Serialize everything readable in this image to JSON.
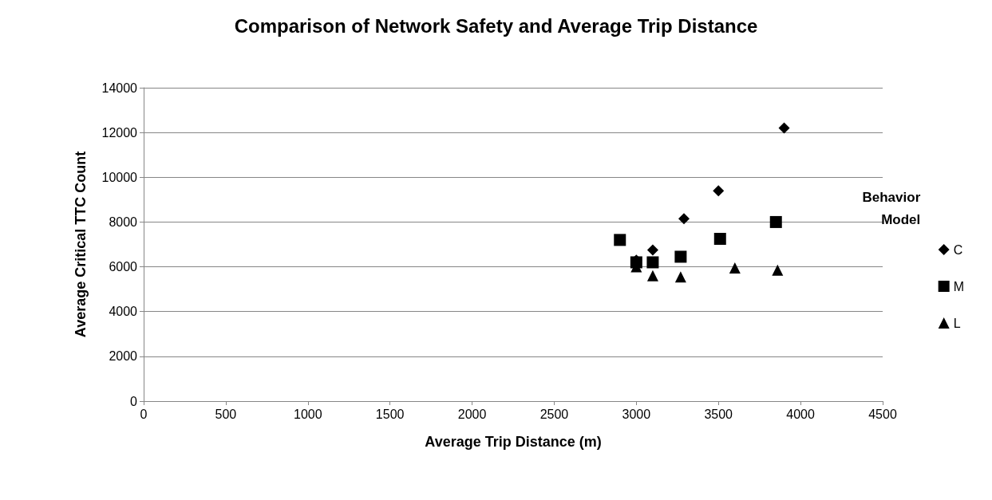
{
  "chart_data": {
    "type": "scatter",
    "title": "Comparison of Network Safety and Average Trip Distance",
    "xlabel": "Average Trip Distance (m)",
    "ylabel": "Average Critical TTC Count",
    "legend_title": "Behavior Model",
    "legend": "right",
    "xlim": [
      0,
      4500
    ],
    "xticks": [
      0,
      500,
      1000,
      1500,
      2000,
      2500,
      3000,
      3500,
      4000,
      4500
    ],
    "ylim": [
      0,
      14000
    ],
    "yticks": [
      0,
      2000,
      4000,
      6000,
      8000,
      10000,
      12000,
      14000
    ],
    "grid": "y",
    "series": [
      {
        "name": "C",
        "color": "#000000",
        "marker": "diamond",
        "x": [
          3000,
          3100,
          3290,
          3500,
          3900
        ],
        "values": [
          6300,
          6750,
          8150,
          9400,
          12200
        ]
      },
      {
        "name": "M",
        "color": "#000000",
        "marker": "square",
        "x": [
          2900,
          3000,
          3100,
          3270,
          3510,
          3850
        ],
        "values": [
          7200,
          6200,
          6200,
          6450,
          7250,
          8000
        ]
      },
      {
        "name": "L",
        "color": "#000000",
        "marker": "triangle",
        "x": [
          3000,
          3100,
          3270,
          3600,
          3860
        ],
        "values": [
          6000,
          5600,
          5550,
          5950,
          5850
        ]
      }
    ]
  }
}
